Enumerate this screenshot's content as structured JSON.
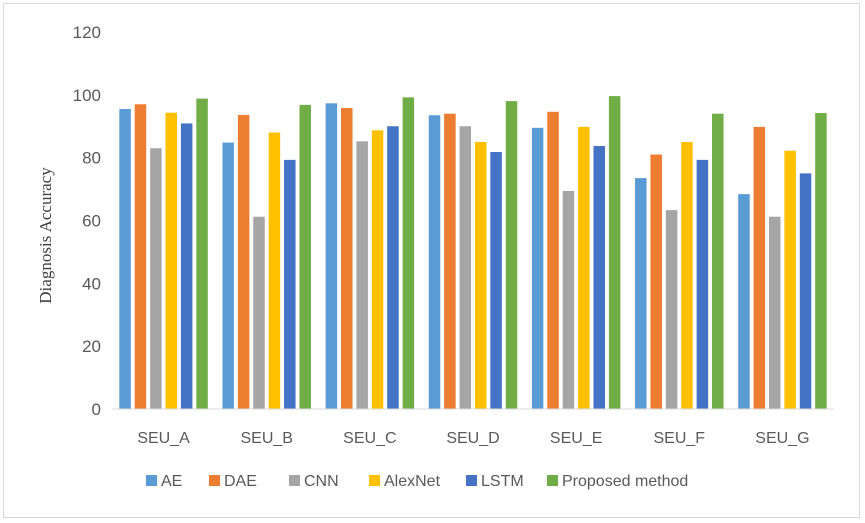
{
  "chart_data": {
    "type": "bar",
    "title": "",
    "xlabel": "",
    "ylabel": "Diagnosis  Accuracy",
    "ylim": [
      0,
      120
    ],
    "yticks": [
      0,
      20,
      40,
      60,
      80,
      100,
      120
    ],
    "grid": false,
    "legend_position": "bottom",
    "categories": [
      "SEU_A",
      "SEU_B",
      "SEU_C",
      "SEU_D",
      "SEU_E",
      "SEU_F",
      "SEU_G"
    ],
    "series": [
      {
        "name": "AE",
        "color": "#5B9BD5",
        "values": [
          95.5,
          84.8,
          97.3,
          93.5,
          89.5,
          73.5,
          68.4
        ]
      },
      {
        "name": "DAE",
        "color": "#ED7D31",
        "values": [
          97.0,
          93.6,
          95.8,
          94.0,
          94.6,
          81.0,
          89.8
        ]
      },
      {
        "name": "CNN",
        "color": "#A5A5A5",
        "values": [
          83.0,
          61.2,
          85.2,
          90.0,
          69.4,
          63.3,
          61.2
        ]
      },
      {
        "name": "AlexNet",
        "color": "#FFC000",
        "values": [
          94.3,
          88.0,
          88.7,
          85.0,
          89.8,
          85.0,
          82.2
        ]
      },
      {
        "name": "LSTM",
        "color": "#4472C4",
        "values": [
          90.9,
          79.3,
          90.0,
          81.8,
          83.7,
          79.3,
          75.0
        ]
      },
      {
        "name": "Proposed method",
        "color": "#70AD47",
        "values": [
          98.8,
          96.8,
          99.2,
          98.0,
          99.6,
          94.0,
          94.2
        ]
      }
    ]
  }
}
